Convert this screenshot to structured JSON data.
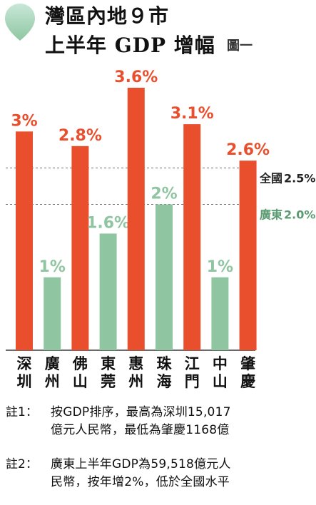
{
  "header": {
    "title_line1": "灣區內地９市",
    "title_line2": "上半年 GDP 增幅",
    "figure_label": "圖一",
    "icon": "leaf-icon"
  },
  "chart_data": {
    "type": "bar",
    "categories": [
      "深圳",
      "廣州",
      "佛山",
      "東莞",
      "惠州",
      "珠海",
      "江門",
      "中山",
      "肇慶"
    ],
    "values": [
      3.0,
      1.0,
      2.8,
      1.6,
      3.6,
      2.0,
      3.1,
      1.0,
      2.6
    ],
    "value_labels": [
      "3%",
      "1%",
      "2.8%",
      "1.6%",
      "3.6%",
      "2%",
      "3.1%",
      "1%",
      "2.6%"
    ],
    "bar_colors": [
      "#ea4f2d",
      "#8fc6a1",
      "#ea4f2d",
      "#8fc6a1",
      "#ea4f2d",
      "#8fc6a1",
      "#ea4f2d",
      "#8fc6a1",
      "#ea4f2d"
    ],
    "reference_lines": [
      {
        "label": "全國",
        "value_label": "2.5%",
        "value": 2.5,
        "color": "#222222"
      },
      {
        "label": "廣東",
        "value_label": "2.0%",
        "value": 2.0,
        "color": "#5a9b72"
      }
    ],
    "title": "",
    "xlabel": "",
    "ylabel": "",
    "ylim": [
      0,
      3.6
    ],
    "grid": false,
    "legend": "none"
  },
  "notes": [
    {
      "label": "註1：",
      "text": "按GDP排序，最高為深圳15,017\n億元人民幣，最低為肇慶1168億"
    },
    {
      "label": "註2：",
      "text": "廣東上半年GDP為59,518億元人\n民幣，按年增2%，低於全國水平"
    }
  ]
}
